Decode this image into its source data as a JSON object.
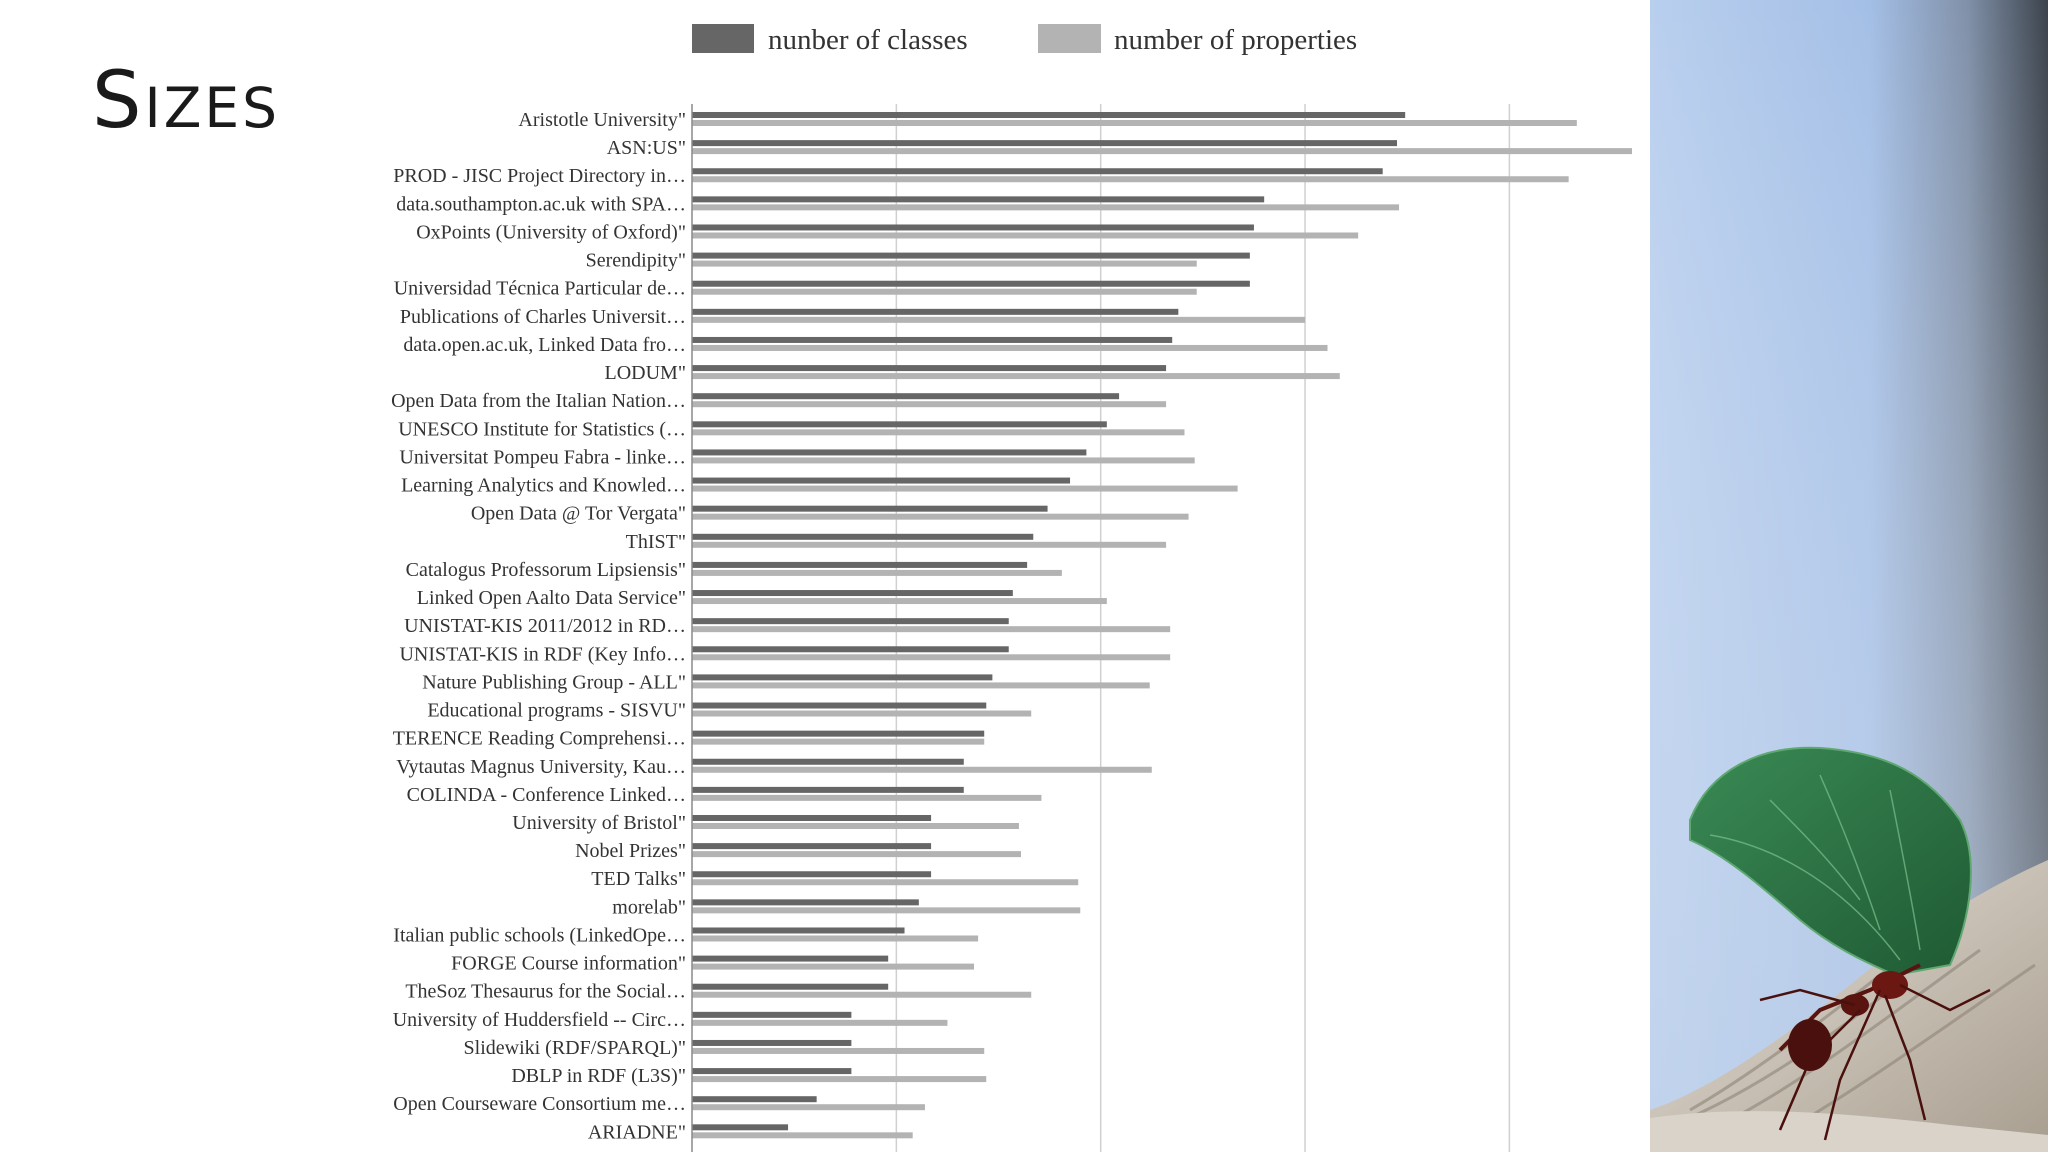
{
  "slide": {
    "title": "Sizes"
  },
  "colors": {
    "classes": "#666666",
    "properties": "#b3b3b3",
    "grid": "#d0d0d0"
  },
  "chart_data": {
    "type": "bar",
    "orientation": "horizontal",
    "title": "",
    "xlabel": "",
    "ylabel": "",
    "xlim": [
      0,
      460
    ],
    "grid": true,
    "legend": "top",
    "categories": [
      "Aristotle University\"",
      "ASN:US\"",
      "PROD - JISC Project Directory in…",
      "data.southampton.ac.uk with SPA…",
      "OxPoints (University of Oxford)\"",
      "Serendipity\"",
      "Universidad Técnica Particular de…",
      "Publications of Charles Universit…",
      "data.open.ac.uk, Linked Data fro…",
      "LODUM\"",
      "Open Data from the Italian Nation…",
      "UNESCO Institute for Statistics (…",
      "Universitat Pompeu Fabra - linke…",
      "Learning Analytics and Knowled…",
      "Open Data @ Tor Vergata\"",
      "ThIST\"",
      "Catalogus Professorum Lipsiensis\"",
      "Linked Open Aalto Data Service\"",
      "UNISTAT-KIS 2011/2012 in RD…",
      "UNISTAT-KIS in RDF (Key Info…",
      "Nature Publishing Group - ALL\"",
      "Educational programs - SISVU\"",
      "TERENCE Reading Comprehensi…",
      "Vytautas Magnus University, Kau…",
      "COLINDA - Conference Linked…",
      "University of Bristol\"",
      "Nobel Prizes\"",
      "TED Talks\"",
      "morelab\"",
      "Italian public schools (LinkedOpe…",
      "FORGE Course information\"",
      "TheSoz Thesaurus for the Social…",
      "University of Huddersfield -- Circ…",
      "Slidewiki (RDF/SPARQL)\"",
      "DBLP in RDF (L3S)\"",
      "Open Courseware Consortium me…",
      "ARIADNE\""
    ],
    "series": [
      {
        "name": "nunber of classes",
        "values": [
          349,
          345,
          338,
          280,
          275,
          273,
          273,
          238,
          235,
          232,
          209,
          203,
          193,
          185,
          174,
          167,
          164,
          157,
          155,
          155,
          147,
          144,
          143,
          133,
          133,
          117,
          117,
          117,
          111,
          104,
          96,
          96,
          78,
          78,
          78,
          61,
          47
        ]
      },
      {
        "name": "number of properties",
        "values": [
          433,
          460,
          429,
          346,
          326,
          247,
          247,
          300,
          311,
          317,
          232,
          241,
          246,
          267,
          243,
          232,
          181,
          203,
          234,
          234,
          224,
          166,
          143,
          225,
          171,
          160,
          161,
          189,
          190,
          140,
          138,
          166,
          125,
          143,
          144,
          114,
          108
        ]
      }
    ]
  }
}
